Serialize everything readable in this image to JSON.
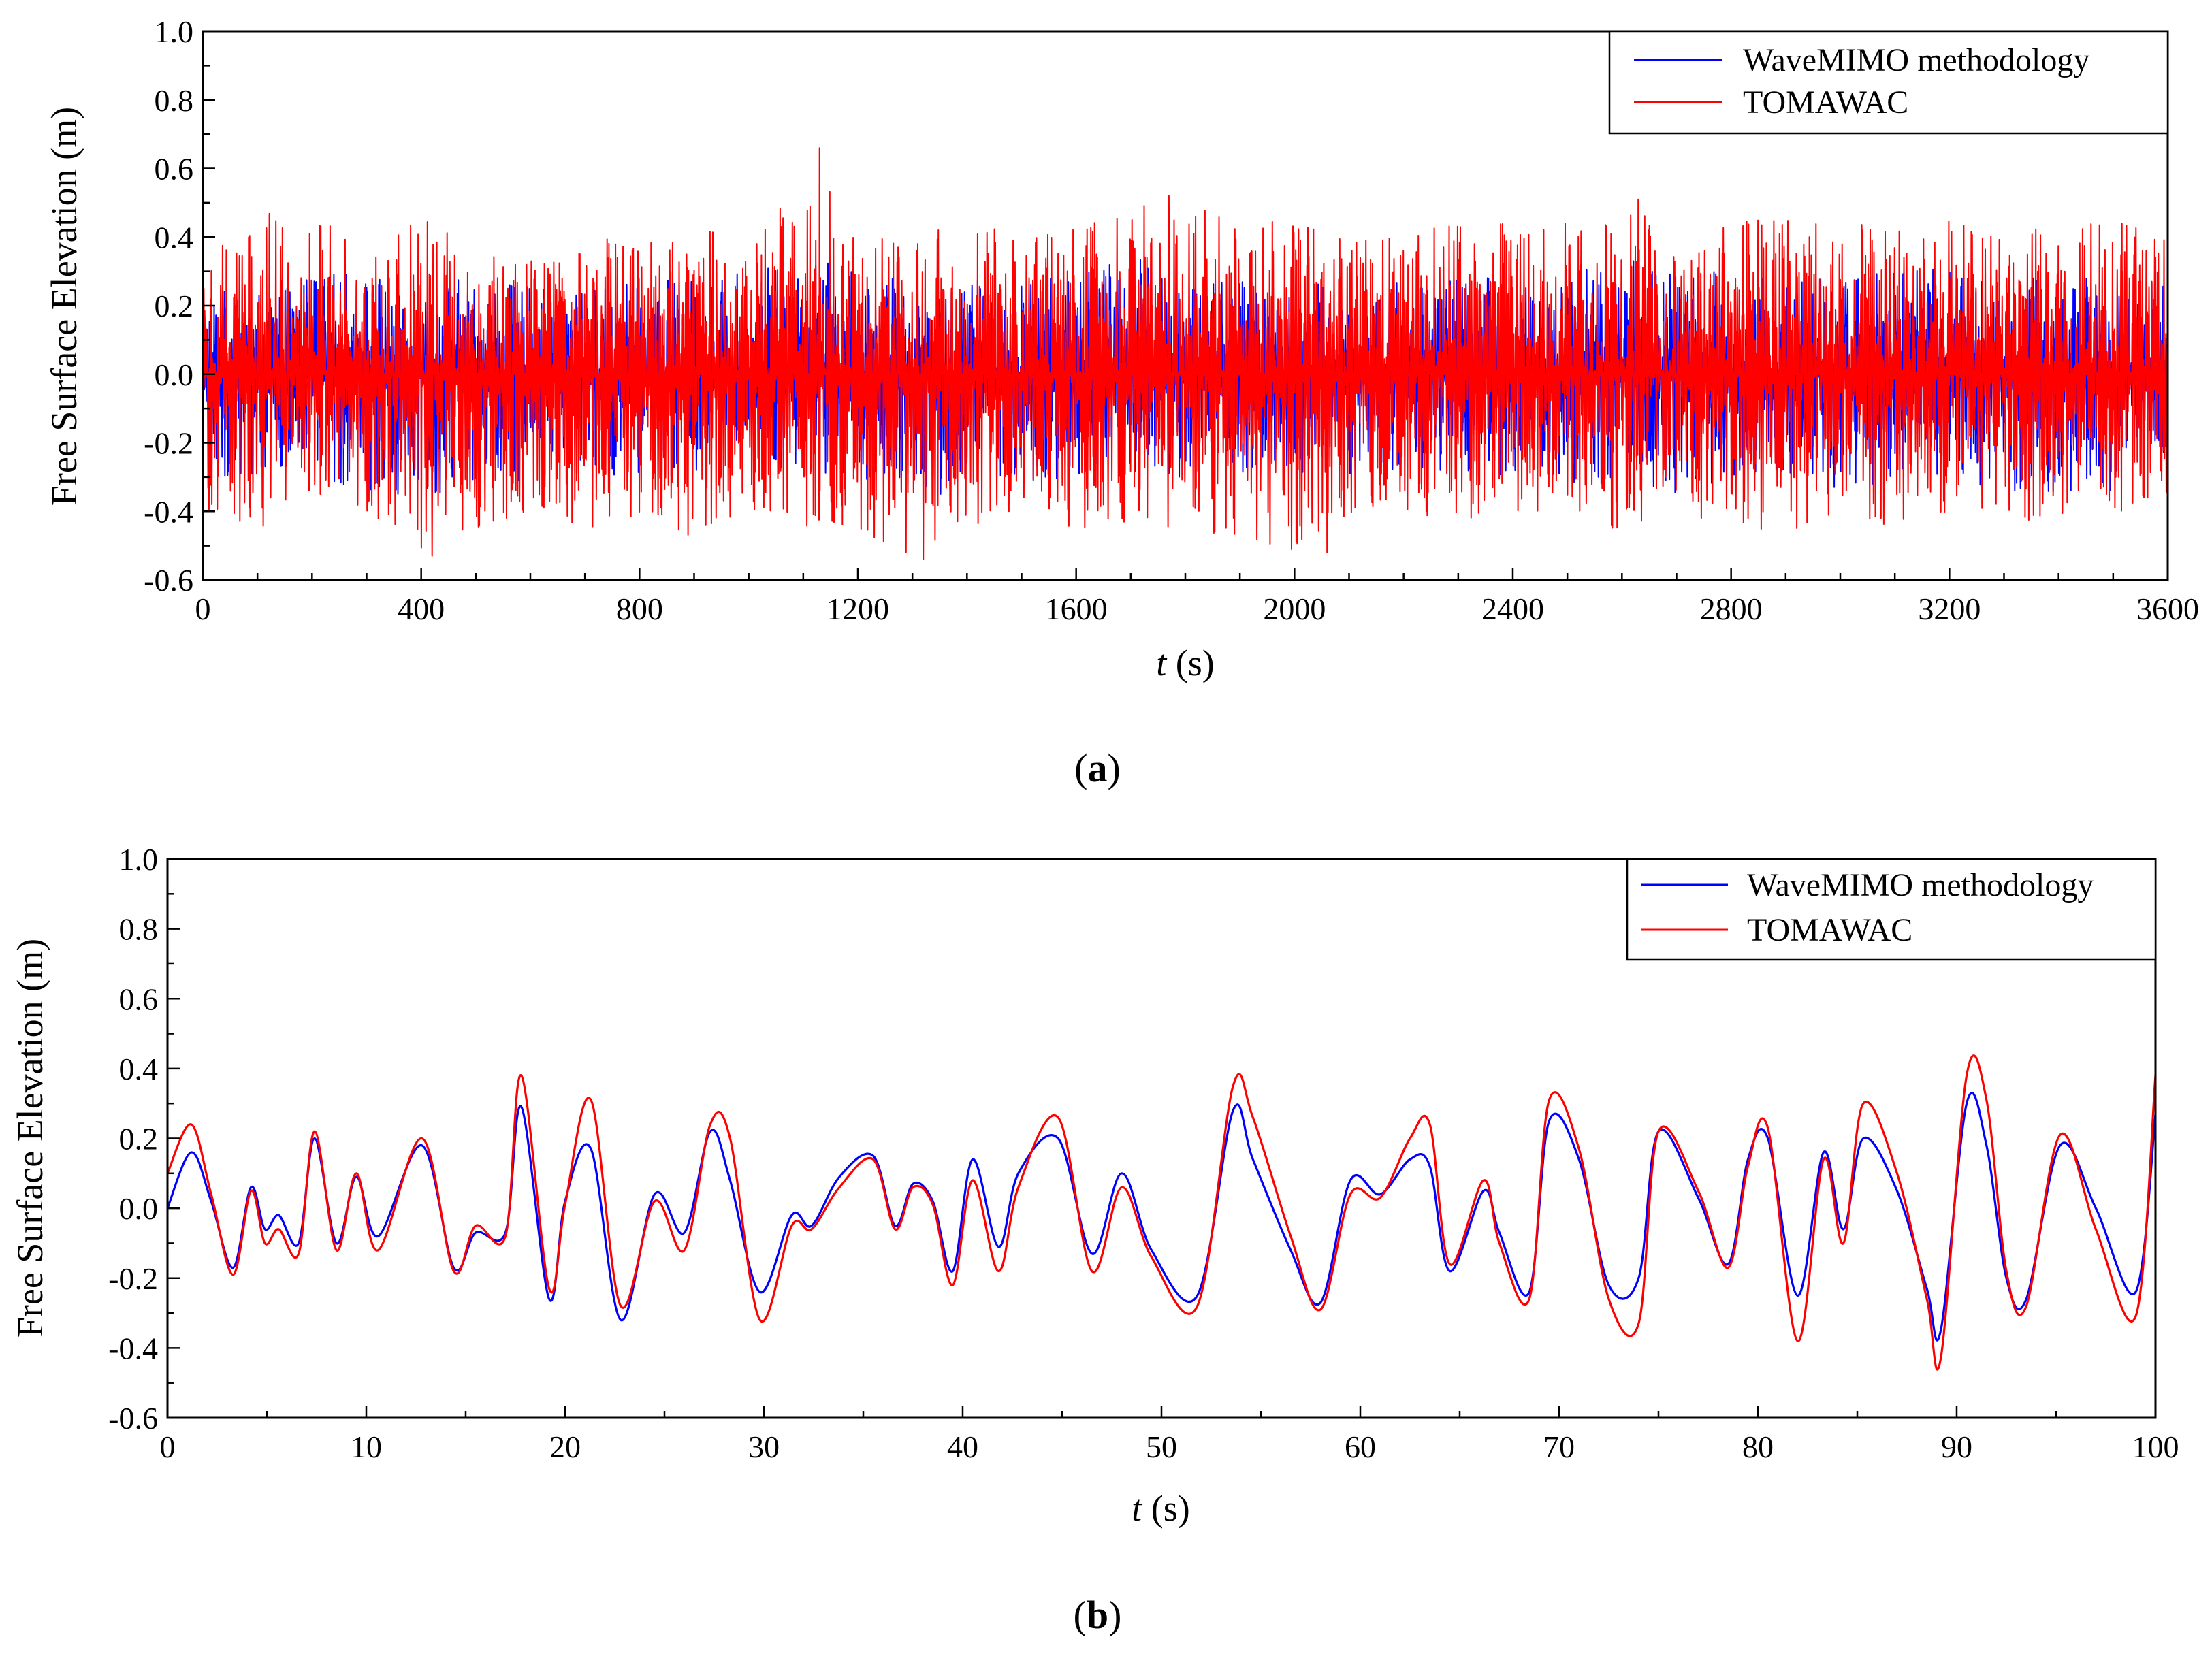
{
  "chart_data": [
    {
      "type": "line",
      "panel_label": "a",
      "ylabel": "Free Surface Elevation (m)",
      "xlabel_var": "t",
      "xlabel_unit": " (s)",
      "xlim": [
        0,
        3600
      ],
      "ylim": [
        -0.6,
        1.0
      ],
      "x_ticks": [
        0,
        400,
        800,
        1200,
        1600,
        2000,
        2400,
        2800,
        3200,
        3600
      ],
      "y_ticks": [
        "1.0",
        "0.8",
        "0.6",
        "0.4",
        "0.2",
        "0.0",
        "-0.2",
        "-0.4",
        "-0.6"
      ],
      "grid": false,
      "legend": "top-right",
      "colors": {
        "wavemimo": "#0000ff",
        "tomawac": "#ff0000"
      },
      "series": [
        {
          "name": "WaveMIMO methodology",
          "color": "#0000ff",
          "x": [
            0,
            100,
            200,
            300,
            400,
            500,
            600,
            700,
            800,
            900,
            1000,
            1100,
            1200,
            1300,
            1400,
            1500,
            1600,
            1700,
            1800,
            1900,
            2000,
            2100,
            2200,
            2300,
            2400,
            2500,
            2600,
            2700,
            2800,
            2900,
            3000,
            3100,
            3200,
            3300,
            3400,
            3500,
            3600
          ],
          "envelope_max": [
            0.25,
            0.25,
            0.3,
            0.3,
            0.28,
            0.28,
            0.25,
            0.25,
            0.28,
            0.28,
            0.3,
            0.35,
            0.3,
            0.28,
            0.28,
            0.28,
            0.3,
            0.35,
            0.3,
            0.28,
            0.28,
            0.25,
            0.28,
            0.3,
            0.28,
            0.3,
            0.35,
            0.3,
            0.3,
            0.28,
            0.3,
            0.35,
            0.3,
            0.28,
            0.3,
            0.28,
            0.28
          ],
          "envelope_min": [
            -0.3,
            -0.3,
            -0.3,
            -0.35,
            -0.35,
            -0.35,
            -0.3,
            -0.3,
            -0.3,
            -0.3,
            -0.3,
            -0.3,
            -0.3,
            -0.35,
            -0.35,
            -0.35,
            -0.3,
            -0.35,
            -0.3,
            -0.3,
            -0.3,
            -0.3,
            -0.3,
            -0.3,
            -0.3,
            -0.35,
            -0.3,
            -0.35,
            -0.3,
            -0.3,
            -0.35,
            -0.3,
            -0.3,
            -0.35,
            -0.35,
            -0.35,
            -0.3
          ]
        },
        {
          "name": "TOMAWAC",
          "color": "#ff0000",
          "x": [
            0,
            100,
            200,
            300,
            400,
            500,
            600,
            700,
            800,
            900,
            1000,
            1100,
            1200,
            1300,
            1400,
            1500,
            1600,
            1700,
            1800,
            1900,
            2000,
            2100,
            2200,
            2300,
            2400,
            2500,
            2600,
            2700,
            2800,
            2900,
            3000,
            3100,
            3200,
            3300,
            3400,
            3500,
            3600
          ],
          "envelope_max": [
            0.4,
            0.5,
            0.45,
            0.4,
            0.45,
            0.4,
            0.35,
            0.4,
            0.4,
            0.45,
            0.4,
            0.66,
            0.4,
            0.4,
            0.45,
            0.45,
            0.45,
            0.52,
            0.52,
            0.45,
            0.45,
            0.4,
            0.4,
            0.45,
            0.45,
            0.45,
            0.51,
            0.4,
            0.45,
            0.45,
            0.45,
            0.45,
            0.45,
            0.4,
            0.45,
            0.45,
            0.4
          ],
          "envelope_min": [
            -0.4,
            -0.45,
            -0.4,
            -0.4,
            -0.53,
            -0.45,
            -0.4,
            -0.45,
            -0.45,
            -0.48,
            -0.4,
            -0.45,
            -0.45,
            -0.54,
            -0.45,
            -0.4,
            -0.45,
            -0.45,
            -0.45,
            -0.48,
            -0.52,
            -0.45,
            -0.4,
            -0.45,
            -0.4,
            -0.45,
            -0.45,
            -0.4,
            -0.45,
            -0.47,
            -0.4,
            -0.45,
            -0.4,
            -0.45,
            -0.43,
            -0.4,
            -0.4
          ],
          "peaks": [
            {
              "x": 1130,
              "y": 0.66
            },
            {
              "x": 1320,
              "y": -0.54
            },
            {
              "x": 2060,
              "y": -0.52
            },
            {
              "x": 420,
              "y": -0.53
            },
            {
              "x": 1770,
              "y": 0.52
            },
            {
              "x": 2630,
              "y": 0.51
            }
          ]
        }
      ]
    },
    {
      "type": "line",
      "panel_label": "b",
      "ylabel": "Free Surface Elevation (m)",
      "xlabel_var": "t",
      "xlabel_unit": " (s)",
      "xlim": [
        0,
        100
      ],
      "ylim": [
        -0.6,
        1.0
      ],
      "x_ticks": [
        0,
        10,
        20,
        30,
        40,
        50,
        60,
        70,
        80,
        90,
        100
      ],
      "y_ticks": [
        "1.0",
        "0.8",
        "0.6",
        "0.4",
        "0.2",
        "0.0",
        "-0.2",
        "-0.4",
        "-0.6"
      ],
      "grid": false,
      "legend": "top-right",
      "series": [
        {
          "name": "WaveMIMO methodology",
          "color": "#0000ff",
          "x": [
            0,
            1.2,
            2.2,
            3.3,
            4.2,
            4.9,
            5.6,
            6.6,
            7.4,
            8.5,
            9.5,
            10.6,
            12.8,
            14.4,
            15.5,
            17,
            17.8,
            19.2,
            20,
            21.3,
            22.8,
            24.5,
            26,
            27.3,
            28.3,
            29.8,
            31.4,
            32.4,
            33.8,
            35.5,
            36.6,
            37.5,
            38.5,
            39.5,
            40.5,
            41.8,
            42.8,
            44.8,
            46.5,
            48,
            49.5,
            51.8,
            53.6,
            54.6,
            56.5,
            58,
            59.5,
            61,
            62.5,
            63.5,
            64.5,
            66.2,
            67,
            68.5,
            69.5,
            71,
            72.5,
            74,
            75,
            77,
            78.5,
            79.5,
            80.5,
            82,
            83.3,
            84.3,
            85.3,
            87,
            88.5,
            89.2,
            90.5,
            91.5,
            92.5,
            93.5,
            95.2,
            97,
            99,
            100
          ],
          "y": [
            0,
            0.16,
            0.02,
            -0.17,
            0.06,
            -0.06,
            -0.02,
            -0.1,
            0.2,
            -0.1,
            0.09,
            -0.08,
            0.18,
            -0.17,
            -0.07,
            -0.07,
            0.29,
            -0.26,
            0.02,
            0.17,
            -0.32,
            0.04,
            -0.07,
            0.22,
            0.08,
            -0.24,
            -0.02,
            -0.05,
            0.09,
            0.15,
            -0.05,
            0.07,
            0.02,
            -0.18,
            0.14,
            -0.11,
            0.1,
            0.2,
            -0.13,
            0.1,
            -0.12,
            -0.25,
            0.28,
            0.14,
            -0.12,
            -0.27,
            0.08,
            0.04,
            0.14,
            0.12,
            -0.18,
            0.05,
            -0.07,
            -0.24,
            0.25,
            0.14,
            -0.22,
            -0.2,
            0.22,
            0.03,
            -0.16,
            0.14,
            0.2,
            -0.25,
            0.16,
            -0.06,
            0.2,
            0.05,
            -0.23,
            -0.35,
            0.3,
            0.18,
            -0.2,
            -0.26,
            0.18,
            0,
            -0.24,
            0.27
          ]
        },
        {
          "name": "TOMAWAC",
          "color": "#ff0000",
          "x": [
            0,
            1.2,
            2.2,
            3.3,
            4.2,
            4.9,
            5.6,
            6.6,
            7.4,
            8.5,
            9.5,
            10.6,
            12.8,
            14.4,
            15.5,
            17,
            17.8,
            19.2,
            20,
            21.3,
            22.8,
            24.5,
            26,
            27.3,
            28.3,
            29.8,
            31.4,
            32.4,
            33.8,
            35.5,
            36.6,
            37.5,
            38.5,
            39.5,
            40.5,
            41.8,
            42.8,
            44.8,
            46.5,
            48,
            49.5,
            51.8,
            53.6,
            54.6,
            56.5,
            58,
            59.5,
            61,
            62.5,
            63.5,
            64.5,
            66.2,
            67,
            68.5,
            69.5,
            71,
            72.5,
            74,
            75,
            77,
            78.5,
            79.5,
            80.5,
            82,
            83.3,
            84.3,
            85.3,
            87,
            88.5,
            89.2,
            90.5,
            91.5,
            92.5,
            93.5,
            95.2,
            97,
            99,
            100
          ],
          "y": [
            0.1,
            0.24,
            0.04,
            -0.19,
            0.05,
            -0.1,
            -0.06,
            -0.13,
            0.22,
            -0.12,
            0.1,
            -0.12,
            0.2,
            -0.18,
            -0.05,
            -0.08,
            0.38,
            -0.23,
            0.01,
            0.31,
            -0.28,
            0.02,
            -0.12,
            0.24,
            0.2,
            -0.32,
            -0.05,
            -0.06,
            0.06,
            0.14,
            -0.06,
            0.06,
            0.01,
            -0.22,
            0.08,
            -0.18,
            0.06,
            0.26,
            -0.18,
            0.06,
            -0.14,
            -0.28,
            0.35,
            0.26,
            -0.08,
            -0.29,
            0.04,
            0.03,
            0.2,
            0.24,
            -0.16,
            0.08,
            -0.1,
            -0.26,
            0.31,
            0.17,
            -0.26,
            -0.33,
            0.22,
            0.05,
            -0.17,
            0.12,
            0.23,
            -0.38,
            0.14,
            -0.1,
            0.3,
            0.1,
            -0.26,
            -0.43,
            0.38,
            0.31,
            -0.18,
            -0.28,
            0.21,
            -0.06,
            -0.31,
            0.38
          ]
        }
      ]
    }
  ]
}
